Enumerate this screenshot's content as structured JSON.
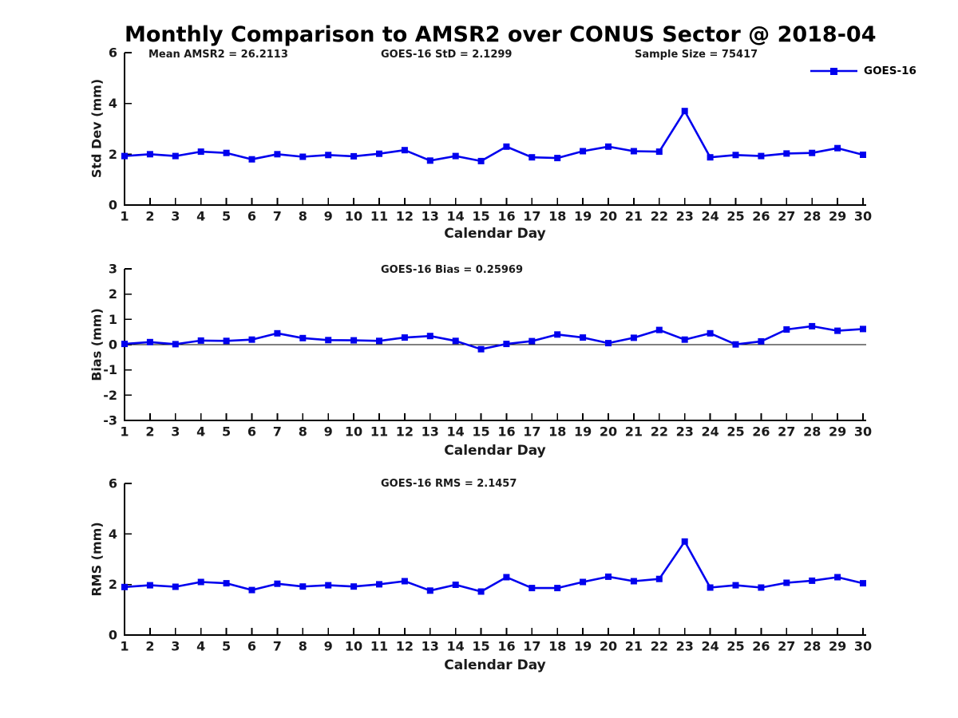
{
  "title": "Monthly Comparison to AMSR2 over CONUS Sector @ 2018-04",
  "colors": {
    "series": "#0000ee",
    "axis": "#000000",
    "tick_text": "#1a1a1a",
    "zero_line": "#000000",
    "background": "#ffffff"
  },
  "legend": {
    "label": "GOES-16",
    "position": "top-right",
    "marker": "square-icon"
  },
  "chart_data": [
    {
      "type": "line",
      "id": "std_dev",
      "ylabel": "Std Dev (mm)",
      "xlabel": "Calendar Day",
      "ylim": [
        0,
        6
      ],
      "yticks": [
        0,
        2,
        4,
        6
      ],
      "grid": false,
      "zero_line": false,
      "x": [
        1,
        2,
        3,
        4,
        5,
        6,
        7,
        8,
        9,
        10,
        11,
        12,
        13,
        14,
        15,
        16,
        17,
        18,
        19,
        20,
        21,
        22,
        23,
        24,
        25,
        26,
        27,
        28,
        29,
        30
      ],
      "series": [
        {
          "name": "GOES-16",
          "color": "#0000ee",
          "marker": "square",
          "values": [
            1.93,
            2.0,
            1.93,
            2.1,
            2.05,
            1.8,
            2.0,
            1.9,
            1.97,
            1.92,
            2.02,
            2.16,
            1.75,
            1.93,
            1.73,
            2.3,
            1.88,
            1.85,
            2.12,
            2.3,
            2.12,
            2.1,
            3.7,
            1.88,
            1.97,
            1.93,
            2.03,
            2.05,
            2.24,
            1.98
          ]
        }
      ],
      "annotations": [
        "Mean AMSR2 = 26.2113",
        "GOES-16 StD = 2.1299",
        "Sample Size = 75417"
      ]
    },
    {
      "type": "line",
      "id": "bias",
      "ylabel": "Bias (mm)",
      "xlabel": "Calendar Day",
      "ylim": [
        -3,
        3
      ],
      "yticks": [
        -3,
        -2,
        -1,
        0,
        1,
        2,
        3
      ],
      "grid": false,
      "zero_line": true,
      "x": [
        1,
        2,
        3,
        4,
        5,
        6,
        7,
        8,
        9,
        10,
        11,
        12,
        13,
        14,
        15,
        16,
        17,
        18,
        19,
        20,
        21,
        22,
        23,
        24,
        25,
        26,
        27,
        28,
        29,
        30
      ],
      "series": [
        {
          "name": "GOES-16",
          "color": "#0000ee",
          "marker": "square",
          "values": [
            0.03,
            0.1,
            0.02,
            0.16,
            0.15,
            0.2,
            0.45,
            0.26,
            0.18,
            0.17,
            0.15,
            0.28,
            0.34,
            0.15,
            -0.18,
            0.03,
            0.14,
            0.4,
            0.28,
            0.06,
            0.27,
            0.58,
            0.2,
            0.45,
            0.01,
            0.13,
            0.6,
            0.73,
            0.55,
            0.62
          ]
        }
      ],
      "annotations": [
        "GOES-16 Bias = 0.25969"
      ]
    },
    {
      "type": "line",
      "id": "rms",
      "ylabel": "RMS (mm)",
      "xlabel": "Calendar Day",
      "ylim": [
        0,
        6
      ],
      "yticks": [
        0,
        2,
        4,
        6
      ],
      "grid": false,
      "zero_line": false,
      "x": [
        1,
        2,
        3,
        4,
        5,
        6,
        7,
        8,
        9,
        10,
        11,
        12,
        13,
        14,
        15,
        16,
        17,
        18,
        19,
        20,
        21,
        22,
        23,
        24,
        25,
        26,
        27,
        28,
        29,
        30
      ],
      "series": [
        {
          "name": "GOES-16",
          "color": "#0000ee",
          "marker": "square",
          "values": [
            1.9,
            1.97,
            1.91,
            2.1,
            2.05,
            1.78,
            2.03,
            1.92,
            1.97,
            1.92,
            2.01,
            2.13,
            1.76,
            1.99,
            1.72,
            2.29,
            1.86,
            1.86,
            2.1,
            2.31,
            2.13,
            2.22,
            3.7,
            1.88,
            1.97,
            1.88,
            2.07,
            2.15,
            2.29,
            2.05
          ]
        }
      ],
      "annotations": [
        "GOES-16 RMS = 2.1457"
      ]
    }
  ]
}
